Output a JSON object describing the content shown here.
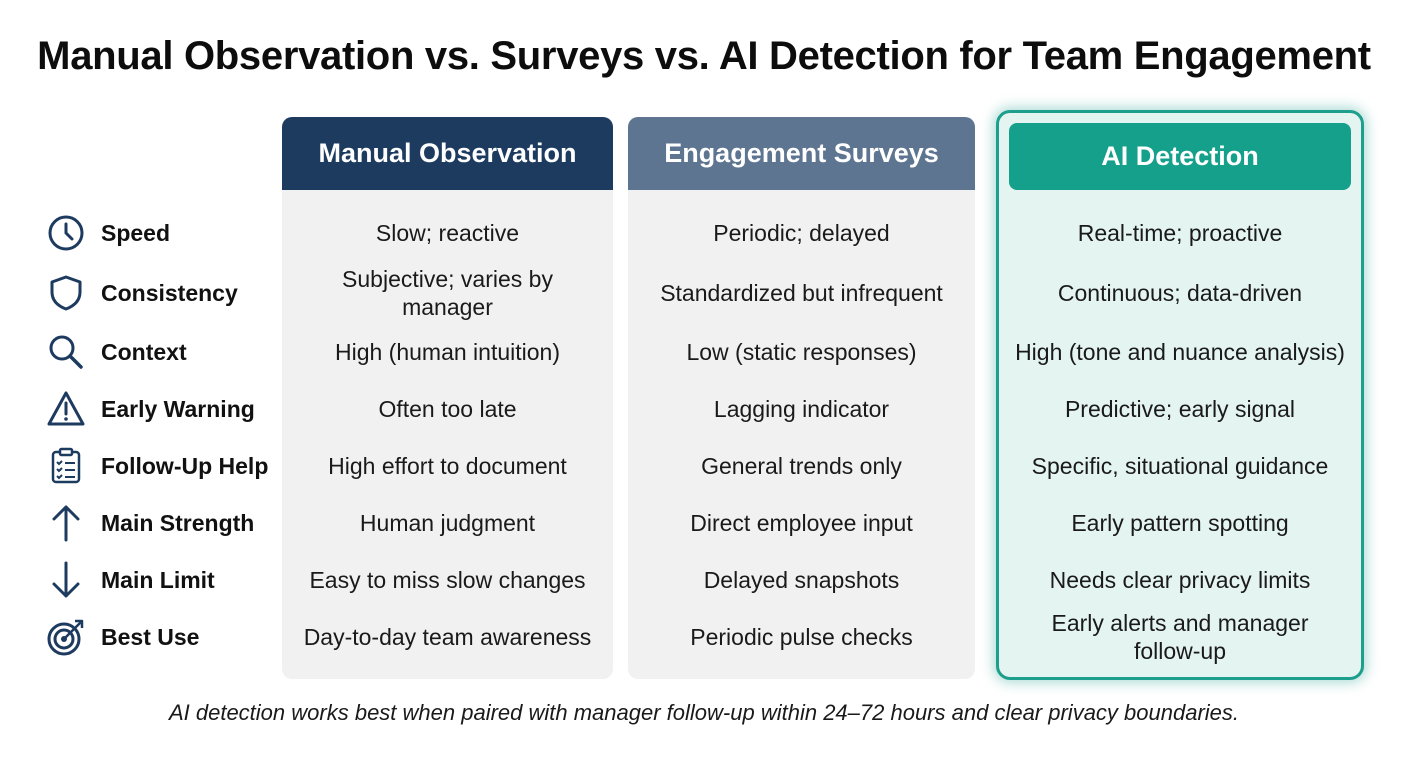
{
  "title": "Manual Observation vs. Surveys vs. AI Detection for Team Engagement",
  "columns": [
    {
      "header": "Manual Observation"
    },
    {
      "header": "Engagement Surveys"
    },
    {
      "header": "AI Detection"
    }
  ],
  "rows": [
    {
      "label": "Speed",
      "icon": "clock-icon",
      "cells": [
        "Slow; reactive",
        "Periodic; delayed",
        "Real-time; proactive"
      ]
    },
    {
      "label": "Consistency",
      "icon": "shield-icon",
      "cells": [
        "Subjective; varies by manager",
        "Standardized but infrequent",
        "Continuous; data-driven"
      ]
    },
    {
      "label": "Context",
      "icon": "search-icon",
      "cells": [
        "High (human intuition)",
        "Low (static responses)",
        "High (tone and nuance analysis)"
      ]
    },
    {
      "label": "Early Warning",
      "icon": "warning-icon",
      "cells": [
        "Often too late",
        "Lagging indicator",
        "Predictive; early signal"
      ]
    },
    {
      "label": "Follow-Up Help",
      "icon": "clipboard-checklist-icon",
      "cells": [
        "High effort to document",
        "General trends only",
        "Specific, situational guidance"
      ]
    },
    {
      "label": "Main Strength",
      "icon": "arrow-up-icon",
      "cells": [
        "Human judgment",
        "Direct employee input",
        "Early pattern spotting"
      ]
    },
    {
      "label": "Main Limit",
      "icon": "arrow-down-icon",
      "cells": [
        "Easy to miss slow changes",
        "Delayed snapshots",
        "Needs clear privacy limits"
      ]
    },
    {
      "label": "Best Use",
      "icon": "target-icon",
      "cells": [
        "Day-to-day team awareness",
        "Periodic pulse checks",
        "Early alerts and manager follow-up"
      ]
    }
  ],
  "footer": "AI detection works best when paired with manager follow-up within 24–72 hours and clear privacy boundaries.",
  "colors": {
    "manual_header": "#1d3a5f",
    "survey_header": "#5d7590",
    "ai_header": "#15a08c",
    "ai_border": "#1e9e8c",
    "icon_color": "#1d3a5f"
  }
}
